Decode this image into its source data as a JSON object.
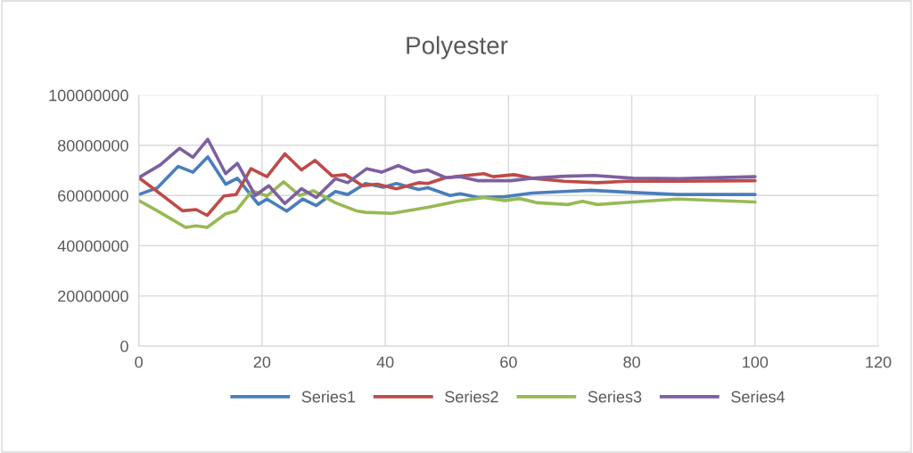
{
  "chart_data": {
    "type": "line",
    "title": "Polyester",
    "xlim": [
      0,
      120
    ],
    "xticks": [
      0,
      20,
      40,
      60,
      80,
      100,
      120
    ],
    "ylim": [
      0,
      100000000
    ],
    "yticks": [
      0,
      20000000,
      40000000,
      60000000,
      80000000,
      100000000
    ],
    "grid": true,
    "legend": "bottom",
    "marker": "none",
    "line_style": "solid",
    "series": [
      {
        "name": "Series1",
        "color": "#4a7ebb",
        "x": [
          0,
          3,
          6.4,
          8.8,
          11.2,
          14.1,
          16,
          19.4,
          20.8,
          24,
          26.6,
          28.8,
          31.9,
          33.9,
          36.8,
          39.7,
          41.8,
          45.4,
          46.9,
          50.5,
          52.2,
          55.1,
          59.4,
          63.8,
          69,
          73.4,
          80.2,
          87.4,
          100
        ],
        "values": [
          60400000,
          63000000,
          71600000,
          69300000,
          75400000,
          64500000,
          66900000,
          56500000,
          58600000,
          53800000,
          58600000,
          56000000,
          61600000,
          60400000,
          64800000,
          63300000,
          64800000,
          62400000,
          63100000,
          60000000,
          60700000,
          59200000,
          59500000,
          61000000,
          61600000,
          62100000,
          61200000,
          60400000,
          60400000
        ]
      },
      {
        "name": "Series2",
        "color": "#be4b48",
        "x": [
          0,
          3,
          7.1,
          9.3,
          11.1,
          13.8,
          15.8,
          18.2,
          20.8,
          23.7,
          26.4,
          28.6,
          31.4,
          33.5,
          36.3,
          38.7,
          41.8,
          45.4,
          46.9,
          49.8,
          56,
          57.5,
          60.9,
          63.8,
          69,
          74.4,
          79.2,
          87.4,
          100
        ],
        "values": [
          67100000,
          61600000,
          53900000,
          54400000,
          52100000,
          59800000,
          60400000,
          70700000,
          67500000,
          76600000,
          70200000,
          74000000,
          67800000,
          68300000,
          63900000,
          64500000,
          62700000,
          65100000,
          64800000,
          67100000,
          68700000,
          67500000,
          68300000,
          66900000,
          65700000,
          65100000,
          65700000,
          65700000,
          65900000
        ]
      },
      {
        "name": "Series3",
        "color": "#98b954",
        "x": [
          0,
          3,
          7.6,
          9.3,
          11.1,
          14.1,
          15.8,
          18.4,
          20.8,
          23.5,
          26.1,
          28.3,
          31.9,
          35.3,
          36.8,
          41.1,
          46.9,
          51.7,
          56,
          59.4,
          61.8,
          64.7,
          69.6,
          72,
          74.4,
          80.2,
          87.4,
          100
        ],
        "values": [
          58000000,
          53900000,
          47300000,
          47900000,
          47300000,
          52700000,
          53900000,
          61900000,
          59800000,
          65500000,
          60000000,
          61900000,
          57100000,
          53900000,
          53300000,
          52900000,
          55300000,
          57700000,
          59200000,
          58000000,
          58800000,
          57100000,
          56400000,
          57700000,
          56400000,
          57400000,
          58600000,
          57400000
        ]
      },
      {
        "name": "Series4",
        "color": "#7d60a0",
        "x": [
          0,
          3.5,
          6.6,
          8.8,
          11.2,
          14.1,
          16,
          18.9,
          21.1,
          23.7,
          26.4,
          28.8,
          31.9,
          33.9,
          37,
          39.4,
          42.1,
          44.7,
          46.9,
          49.8,
          52.2,
          55.1,
          60.4,
          63.8,
          69.1,
          73.9,
          80.2,
          87.4,
          100
        ],
        "values": [
          67100000,
          72200000,
          78800000,
          75200000,
          82400000,
          68700000,
          72800000,
          60000000,
          63900000,
          56800000,
          62700000,
          59200000,
          66700000,
          65100000,
          70700000,
          69300000,
          71900000,
          69300000,
          70200000,
          67100000,
          67500000,
          65900000,
          65900000,
          66900000,
          67700000,
          68000000,
          66900000,
          66700000,
          67500000
        ]
      }
    ]
  }
}
